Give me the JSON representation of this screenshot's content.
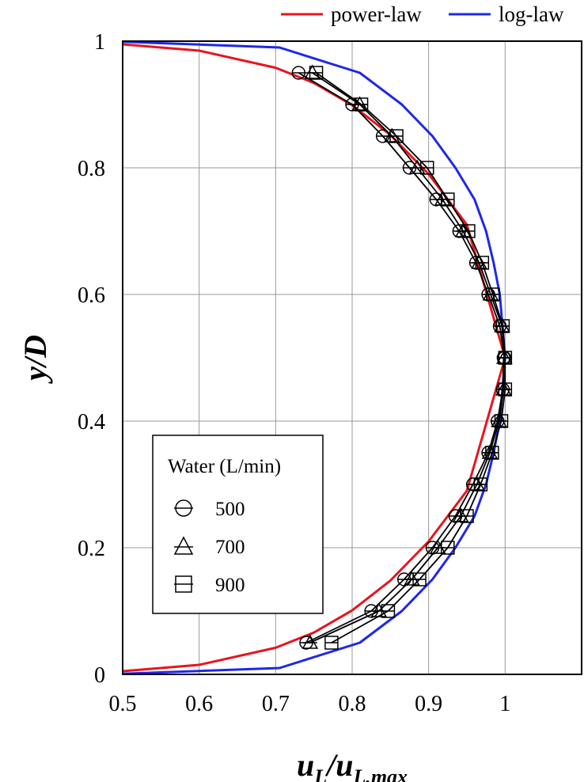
{
  "chart_data": {
    "type": "line",
    "xlabel": {
      "main": "u",
      "sub": "L",
      "mid": "/u",
      "sub2": "L,max"
    },
    "ylabel": "y/D",
    "xlim": [
      0.5,
      1.1
    ],
    "ylim": [
      0,
      1
    ],
    "x_ticks": [
      "0.5",
      "0.6",
      "0.7",
      "0.8",
      "0.9",
      "1"
    ],
    "x_tick_values": [
      0.5,
      0.6,
      0.7,
      0.8,
      0.9,
      1.0
    ],
    "y_ticks": [
      "0",
      "0.2",
      "0.4",
      "0.6",
      "0.8",
      "1"
    ],
    "y_tick_values": [
      0,
      0.2,
      0.4,
      0.6,
      0.8,
      1.0
    ],
    "grid": true,
    "top_legend": [
      {
        "label": "power-law",
        "color": "#e8141e"
      },
      {
        "label": "log-law",
        "color": "#1e28e6"
      }
    ],
    "inset_legend": {
      "title": "Water (L/min)",
      "entries": [
        {
          "label": "500",
          "marker": "circle"
        },
        {
          "label": "700",
          "marker": "triangle"
        },
        {
          "label": "900",
          "marker": "square"
        }
      ]
    },
    "series": [
      {
        "name": "power-law",
        "color": "#e8141e",
        "kind": "line",
        "x": [
          0.5,
          0.6,
          0.7,
          0.75,
          0.8,
          0.85,
          0.9,
          0.95,
          1.0,
          0.95,
          0.9,
          0.85,
          0.8,
          0.75,
          0.7,
          0.6,
          0.5
        ],
        "y": [
          0.005,
          0.015,
          0.042,
          0.066,
          0.101,
          0.148,
          0.21,
          0.29,
          0.5,
          0.71,
          0.79,
          0.852,
          0.899,
          0.934,
          0.958,
          0.985,
          0.995
        ]
      },
      {
        "name": "log-law",
        "color": "#1e28e6",
        "kind": "line",
        "x": [
          0.5,
          0.705,
          0.81,
          0.865,
          0.905,
          0.935,
          0.96,
          0.975,
          0.985,
          0.993,
          1.0,
          0.993,
          0.985,
          0.975,
          0.96,
          0.935,
          0.905,
          0.865,
          0.81,
          0.705,
          0.5
        ],
        "y": [
          0.001,
          0.01,
          0.05,
          0.1,
          0.15,
          0.2,
          0.25,
          0.3,
          0.35,
          0.4,
          0.5,
          0.6,
          0.65,
          0.7,
          0.75,
          0.8,
          0.85,
          0.9,
          0.95,
          0.99,
          0.999
        ]
      },
      {
        "name": "500",
        "color": "#000000",
        "kind": "marker",
        "marker": "circle",
        "x": [
          0.74,
          0.825,
          0.868,
          0.905,
          0.935,
          0.958,
          0.978,
          0.99,
          0.997,
          0.998,
          0.999,
          0.993,
          0.978,
          0.962,
          0.94,
          0.91,
          0.875,
          0.84,
          0.8,
          0.73
        ],
        "y": [
          0.05,
          0.1,
          0.15,
          0.2,
          0.25,
          0.3,
          0.35,
          0.4,
          0.45,
          0.5,
          0.5,
          0.55,
          0.6,
          0.65,
          0.7,
          0.75,
          0.8,
          0.85,
          0.9,
          0.95
        ]
      },
      {
        "name": "700",
        "color": "#000000",
        "kind": "marker",
        "marker": "triangle",
        "x": [
          0.745,
          0.835,
          0.878,
          0.912,
          0.942,
          0.963,
          0.98,
          0.992,
          0.998,
          0.999,
          0.996,
          0.981,
          0.966,
          0.945,
          0.918,
          0.885,
          0.852,
          0.81,
          0.748
        ],
        "y": [
          0.05,
          0.1,
          0.15,
          0.2,
          0.25,
          0.3,
          0.35,
          0.4,
          0.45,
          0.5,
          0.55,
          0.6,
          0.65,
          0.7,
          0.75,
          0.8,
          0.85,
          0.9,
          0.95
        ]
      },
      {
        "name": "900",
        "color": "#000000",
        "kind": "marker",
        "marker": "square",
        "x": [
          0.773,
          0.847,
          0.888,
          0.925,
          0.95,
          0.968,
          0.983,
          0.995,
          1.0,
          1.0,
          0.997,
          0.984,
          0.97,
          0.952,
          0.925,
          0.898,
          0.858,
          0.812,
          0.753
        ],
        "y": [
          0.05,
          0.1,
          0.15,
          0.2,
          0.25,
          0.3,
          0.35,
          0.4,
          0.45,
          0.5,
          0.55,
          0.6,
          0.65,
          0.7,
          0.75,
          0.8,
          0.85,
          0.9,
          0.95
        ]
      }
    ]
  }
}
